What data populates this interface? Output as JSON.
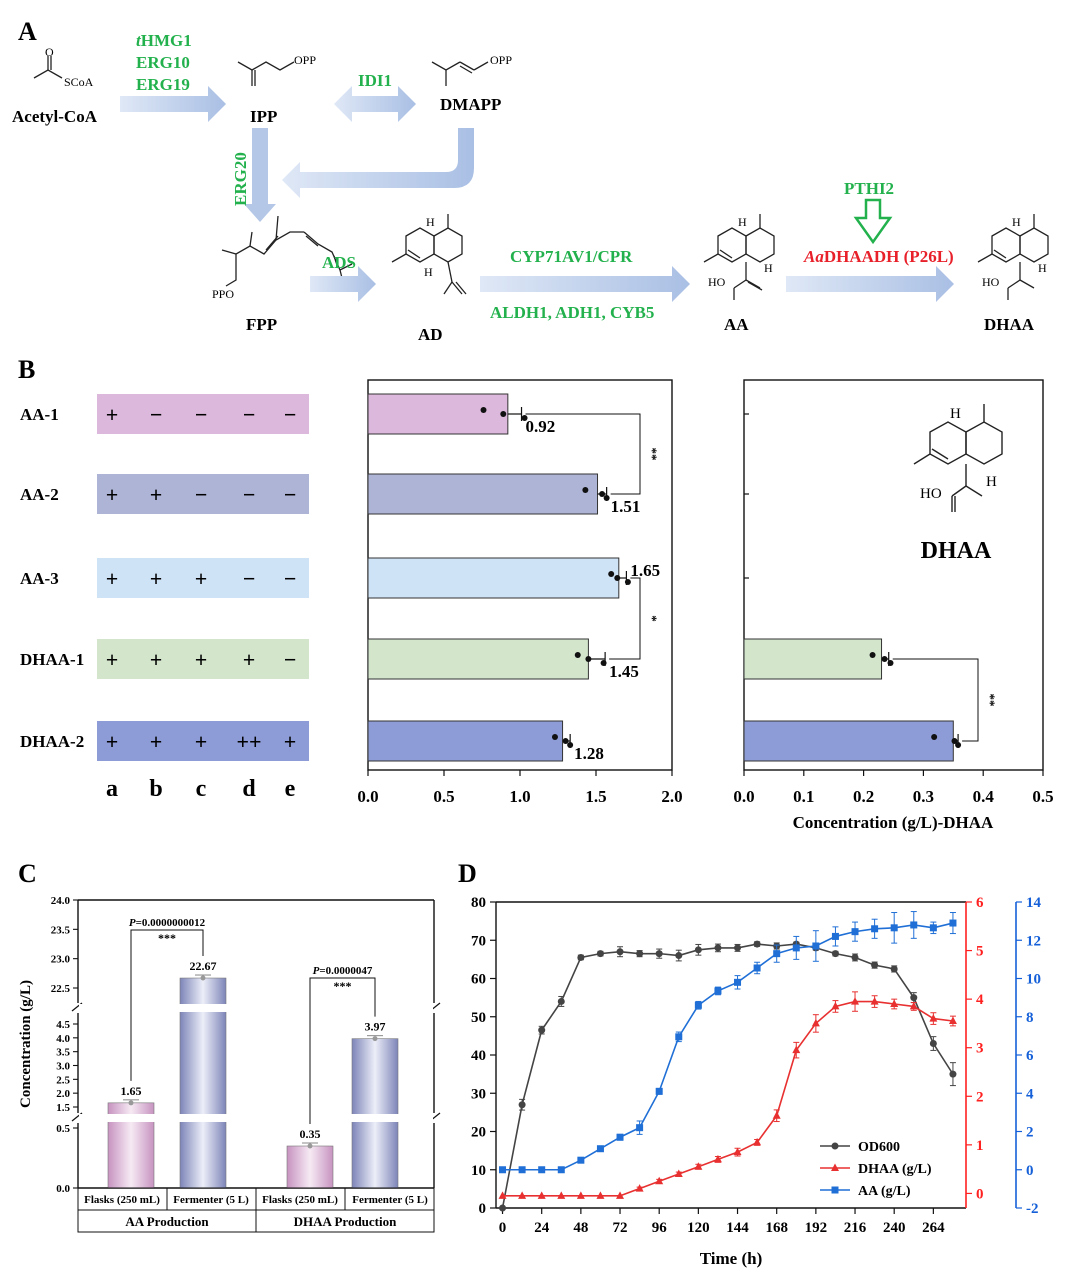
{
  "panels": {
    "A": "A",
    "B": "B",
    "C": "C",
    "D": "D"
  },
  "colors": {
    "green": "#22b14c",
    "red": "#e8202a",
    "arrow": "#b4c7e7",
    "axis_red": "#ff2020",
    "axis_blue": "#1560d8",
    "od": "#444444",
    "aa": "#1f6fd6",
    "dhaa": "#e83030"
  },
  "pathway": {
    "acetyl_coa": "Acetyl-CoA",
    "scoa": "SCoA",
    "opp": "OPP",
    "ppo": "PPO",
    "ho": "HO",
    "h": "H",
    "ipp": "IPP",
    "dmapp": "DMAPP",
    "fpp": "FPP",
    "ad": "AD",
    "aa": "AA",
    "dhaa": "DHAA",
    "thmg1_prefix": "t",
    "thmg1_rest": "HMG1",
    "erg10": "ERG10",
    "erg19": "ERG19",
    "idi1": "IDI1",
    "erg20": "ERG20",
    "ads": "ADS",
    "cyp": "CYP71AV1/CPR",
    "aldh": "ALDH1, ADH1, CYB5",
    "pthi2": "PTHI2",
    "aa_prefix": "Aa",
    "dhaadh_rest": "DHAADH (P26L)"
  },
  "chart_data": [
    {
      "type": "bar",
      "panel": "B-left",
      "orientation": "horizontal",
      "categories": [
        "AA-1",
        "AA-2",
        "AA-3",
        "DHAA-1",
        "DHAA-2"
      ],
      "values": [
        0.92,
        1.51,
        1.65,
        1.45,
        1.28
      ],
      "errors": [
        0.09,
        0.06,
        0.05,
        0.11,
        0.05
      ],
      "points": [
        [
          0.76,
          0.89,
          1.03
        ],
        [
          1.43,
          1.54,
          1.57
        ],
        [
          1.6,
          1.64,
          1.71
        ],
        [
          1.38,
          1.45,
          1.55
        ],
        [
          1.23,
          1.3,
          1.33
        ]
      ],
      "bar_colors": [
        "#dcb8dc",
        "#adb4d6",
        "#cfe3f7",
        "#d3e6cc",
        "#8d9cd6"
      ],
      "xlim": [
        0,
        2.0
      ],
      "xticks": [
        0.0,
        0.5,
        1.0,
        1.5,
        2.0
      ],
      "significance": [
        {
          "between": [
            "AA-1",
            "AA-2"
          ],
          "label": "**"
        },
        {
          "between": [
            "AA-3",
            "DHAA-1"
          ],
          "label": "*"
        }
      ]
    },
    {
      "type": "bar",
      "panel": "B-right",
      "orientation": "horizontal",
      "categories": [
        "AA-1",
        "AA-2",
        "AA-3",
        "DHAA-1",
        "DHAA-2"
      ],
      "values": [
        0,
        0,
        0,
        0.23,
        0.35
      ],
      "errors": [
        0,
        0,
        0,
        0.012,
        0.008
      ],
      "points": [
        [],
        [],
        [],
        [
          0.215,
          0.235,
          0.245
        ],
        [
          0.318,
          0.352,
          0.358
        ]
      ],
      "bar_colors": [
        "#dcb8dc",
        "#adb4d6",
        "#cfe3f7",
        "#d3e6cc",
        "#8d9cd6"
      ],
      "xlim": [
        0,
        0.5
      ],
      "xticks": [
        0.0,
        0.1,
        0.2,
        0.3,
        0.4,
        0.5
      ],
      "xlabel": "Concentration (g/L)-DHAA",
      "significance": [
        {
          "between": [
            "DHAA-1",
            "DHAA-2"
          ],
          "label": "**"
        }
      ],
      "inset_label": "DHAA"
    },
    {
      "type": "bar",
      "panel": "C",
      "categories": [
        "Flasks (250 mL)",
        "Fermenter (5 L)",
        "Flasks (250 mL)",
        "Fermenter (5 L)"
      ],
      "groups": [
        "AA Production",
        "DHAA Production"
      ],
      "values": [
        1.65,
        22.67,
        0.35,
        3.97
      ],
      "value_labels": [
        "1.65",
        "22.67",
        "0.35",
        "3.97"
      ],
      "ylabel": "Concentration (g/L)",
      "yticks_top": [
        "22.5",
        "23.0",
        "23.5",
        "24.0"
      ],
      "yticks_mid": [
        "1.5",
        "2.0",
        "2.5",
        "3.0",
        "3.5",
        "4.0",
        "4.5"
      ],
      "yticks_low": [
        "0.0",
        "0.5"
      ],
      "significance": [
        {
          "p": "=0.0000000012",
          "stars": "***"
        },
        {
          "p": "=0.0000047",
          "stars": "***"
        }
      ],
      "p_label": "P"
    },
    {
      "type": "line",
      "panel": "D",
      "xlabel": "Time (h)",
      "xlim": [
        -4,
        284
      ],
      "xticks": [
        0,
        24,
        48,
        72,
        96,
        120,
        144,
        168,
        192,
        216,
        240,
        264
      ],
      "series": [
        {
          "name": "OD600",
          "axis": "left",
          "ylim": [
            0,
            80
          ],
          "color": "#444444",
          "marker": "circle",
          "x": [
            0,
            12,
            24,
            36,
            48,
            60,
            72,
            84,
            96,
            108,
            120,
            132,
            144,
            156,
            168,
            180,
            192,
            204,
            216,
            228,
            240,
            252,
            264,
            276
          ],
          "y": [
            0,
            27,
            46.5,
            54,
            65.5,
            66.5,
            67,
            66.5,
            66.5,
            66,
            67.5,
            68,
            68,
            69,
            68.5,
            69,
            68,
            66.5,
            65.5,
            63.5,
            62.5,
            55,
            43,
            35
          ],
          "err": [
            0,
            1.4,
            1,
            1.3,
            0.6,
            0.6,
            1.3,
            0.8,
            1.2,
            1.4,
            1.4,
            1,
            0.9,
            0.6,
            0.8,
            0.5,
            0.6,
            0.6,
            0.9,
            0.8,
            0.8,
            1.3,
            1.8,
            3
          ]
        },
        {
          "name": "DHAA (g/L)",
          "axis": "right1",
          "ylim": [
            -0.3,
            6
          ],
          "color": "#e83030",
          "marker": "triangle",
          "x": [
            0,
            12,
            24,
            36,
            48,
            60,
            72,
            84,
            96,
            108,
            120,
            132,
            144,
            156,
            168,
            180,
            192,
            204,
            216,
            228,
            240,
            252,
            264,
            276
          ],
          "y": [
            -0.05,
            -0.05,
            -0.05,
            -0.05,
            -0.05,
            -0.05,
            -0.05,
            0.1,
            0.25,
            0.4,
            0.55,
            0.7,
            0.85,
            1.05,
            1.6,
            2.95,
            3.5,
            3.85,
            3.95,
            3.95,
            3.9,
            3.85,
            3.6,
            3.55
          ],
          "err": [
            0,
            0,
            0,
            0,
            0,
            0,
            0,
            0.03,
            0.04,
            0.04,
            0.05,
            0.06,
            0.08,
            0.06,
            0.12,
            0.16,
            0.18,
            0.12,
            0.2,
            0.12,
            0.1,
            0.08,
            0.12,
            0.1
          ]
        },
        {
          "name": "AA (g/L)",
          "axis": "right2",
          "ylim": [
            -2,
            14
          ],
          "color": "#1f6fd6",
          "marker": "square",
          "x": [
            0,
            12,
            24,
            36,
            48,
            60,
            72,
            84,
            96,
            108,
            120,
            132,
            144,
            156,
            168,
            180,
            192,
            204,
            216,
            228,
            240,
            252,
            264,
            276
          ],
          "y": [
            0,
            0,
            0,
            0,
            0.5,
            1.1,
            1.7,
            2.2,
            4.1,
            6.95,
            8.6,
            9.35,
            9.8,
            10.55,
            11.3,
            11.6,
            11.7,
            12.2,
            12.45,
            12.6,
            12.65,
            12.8,
            12.65,
            12.9
          ],
          "err": [
            0,
            0,
            0,
            0,
            0.1,
            0.1,
            0.15,
            0.35,
            0.15,
            0.25,
            0.2,
            0.2,
            0.35,
            0.3,
            0.45,
            0.6,
            0.8,
            0.5,
            0.5,
            0.5,
            0.8,
            0.7,
            0.3,
            0.55
          ]
        }
      ],
      "y_left_ticks": [
        0,
        10,
        20,
        30,
        40,
        50,
        60,
        70,
        80
      ],
      "y_right1_ticks": [
        0,
        1,
        2,
        3,
        4,
        5,
        6
      ],
      "y_right2_ticks": [
        -2,
        0,
        2,
        4,
        6,
        8,
        10,
        12,
        14
      ],
      "legend": "lower-right"
    }
  ],
  "grid_B": {
    "labels": [
      "AA-1",
      "AA-2",
      "AA-3",
      "DHAA-1",
      "DHAA-2"
    ],
    "signs": [
      [
        "+",
        "−",
        "−",
        "−",
        "−"
      ],
      [
        "+",
        "+",
        "−",
        "−",
        "−"
      ],
      [
        "+",
        "+",
        "+",
        "−",
        "−"
      ],
      [
        "+",
        "+",
        "+",
        "+",
        "−"
      ],
      [
        "+",
        "+",
        "+",
        "++",
        "+"
      ]
    ],
    "row_colors": [
      "#dcb8dc",
      "#adb4d6",
      "#cfe3f7",
      "#d3e6cc",
      "#8d9cd6"
    ],
    "columns": [
      "a",
      "b",
      "c",
      "d",
      "e"
    ]
  }
}
